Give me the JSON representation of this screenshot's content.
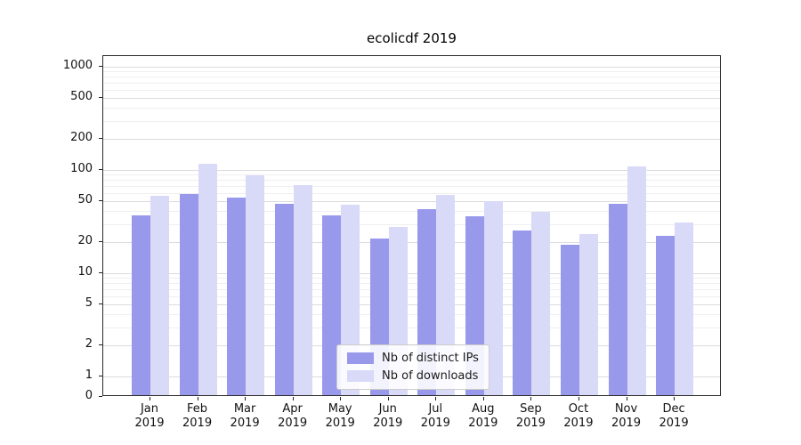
{
  "chart_data": {
    "type": "bar",
    "title": "ecolicdf 2019",
    "categories": [
      "Jan",
      "Feb",
      "Mar",
      "Apr",
      "May",
      "Jun",
      "Jul",
      "Aug",
      "Sep",
      "Oct",
      "Nov",
      "Dec"
    ],
    "year_label": "2019",
    "series": [
      {
        "name": "Nb of distinct IPs",
        "color": "#9999ec",
        "values": [
          35,
          56,
          52,
          45,
          35,
          21,
          40,
          34,
          25,
          18,
          45,
          22
        ]
      },
      {
        "name": "Nb of downloads",
        "color": "#d9d9f8",
        "values": [
          54,
          110,
          85,
          68,
          44,
          27,
          55,
          48,
          38,
          23,
          105,
          30
        ]
      }
    ],
    "yticks": [
      0,
      1,
      2,
      5,
      10,
      20,
      50,
      100,
      200,
      500,
      1000
    ],
    "yscale": "symlog",
    "ylim": [
      0,
      1300
    ],
    "xlabel": "",
    "ylabel": "",
    "grid": true,
    "legend_position": "lower center",
    "grid_major_color": "#dcdcdf",
    "grid_minor_color": "#efeff1"
  }
}
